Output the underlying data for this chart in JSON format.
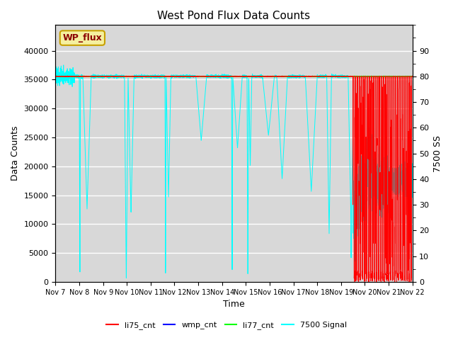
{
  "title": "West Pond Flux Data Counts",
  "ylabel_left": "Data Counts",
  "ylabel_right": "7500 SS",
  "xlabel": "Time",
  "ylim_left": [
    0,
    44444
  ],
  "ylim_right": [
    0,
    100
  ],
  "background_color": "#d8d8d8",
  "legend_labels": [
    "li75_cnt",
    "wmp_cnt",
    "li77_cnt",
    "7500 Signal"
  ],
  "legend_colors": [
    "red",
    "blue",
    "lime",
    "cyan"
  ],
  "annotation_text": "WP_flux",
  "annotation_bg": "#f5f0a0",
  "annotation_border": "#c8a000",
  "xticklabels": [
    "Nov 7",
    "Nov 8",
    "Nov 9",
    "Nov 10",
    "Nov 11",
    "Nov 12",
    "Nov 13",
    "Nov 14",
    "Nov 15",
    "Nov 16",
    "Nov 17",
    "Nov 18",
    "Nov 19",
    "Nov 20",
    "Nov 21",
    "Nov 22"
  ],
  "yticks_left": [
    0,
    5000,
    10000,
    15000,
    20000,
    25000,
    30000,
    35000,
    40000
  ],
  "yticks_right": [
    0,
    10,
    20,
    30,
    40,
    50,
    60,
    70,
    80,
    90
  ]
}
